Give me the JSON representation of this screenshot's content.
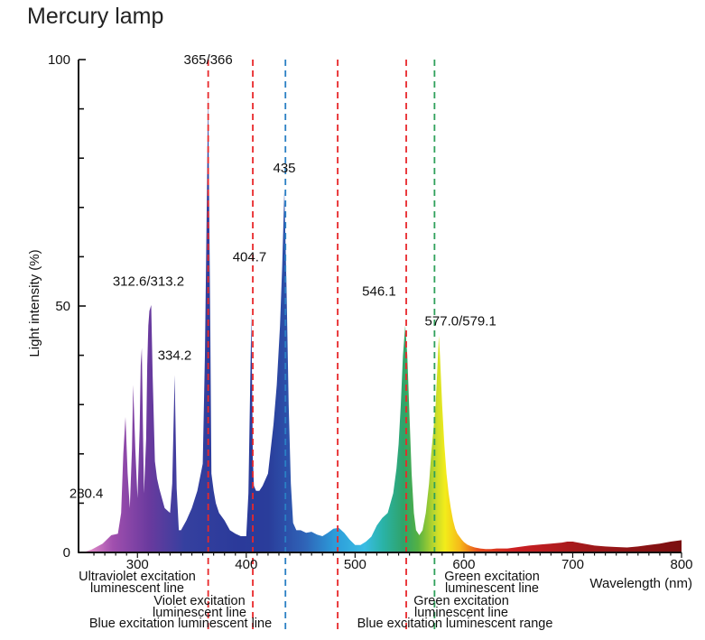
{
  "chart_data": {
    "type": "area",
    "title": "Mercury lamp",
    "xlabel": "Wavelength (nm)",
    "ylabel": "Light intensity (%)",
    "xlim": [
      250,
      800
    ],
    "ylim": [
      0,
      100
    ],
    "x_ticks": [
      300,
      400,
      500,
      600,
      700,
      800
    ],
    "y_ticks": [
      0,
      50,
      100
    ],
    "spectrum": {
      "x": [
        250,
        258,
        268,
        276,
        282,
        285,
        287,
        289,
        291,
        293,
        295,
        296,
        298,
        300,
        302,
        303,
        304,
        305,
        306,
        308,
        309,
        310,
        311,
        312.6,
        314,
        316,
        318,
        320,
        325,
        330,
        332,
        334.2,
        336,
        338,
        340,
        345,
        350,
        355,
        360,
        362,
        365,
        367,
        368,
        370,
        372,
        375,
        380,
        385,
        390,
        395,
        400,
        402,
        404.7,
        406,
        407,
        409,
        412,
        415,
        420,
        425,
        428,
        431,
        433,
        435,
        437,
        439,
        441,
        443,
        446,
        450,
        455,
        460,
        465,
        470,
        475,
        480,
        485,
        490,
        495,
        500,
        505,
        510,
        515,
        520,
        525,
        530,
        535,
        538,
        540,
        542,
        544,
        546.1,
        548,
        550,
        552,
        554,
        556,
        559,
        562,
        565,
        568,
        570,
        572,
        574,
        577,
        578,
        580,
        582,
        584,
        586,
        588,
        590,
        592,
        594,
        596,
        598,
        600,
        603,
        606,
        610,
        615,
        620,
        625,
        630,
        640,
        650,
        660,
        670,
        680,
        690,
        695,
        700,
        710,
        720,
        730,
        740,
        750,
        760,
        770,
        780,
        790,
        800
      ],
      "y": [
        0,
        0.6,
        1.8,
        3.5,
        3.8,
        8,
        20,
        27.5,
        16,
        9,
        21,
        34,
        21,
        11,
        25,
        38,
        41.5,
        26,
        12,
        23,
        38,
        46,
        49,
        50.2,
        36,
        18.5,
        15,
        13,
        9,
        8,
        14,
        36,
        13,
        4.5,
        4.5,
        6.5,
        9,
        12.5,
        18,
        40,
        93,
        45,
        16,
        12.5,
        10,
        8,
        6.5,
        4.5,
        3.8,
        3.3,
        3.3,
        12,
        48.5,
        19,
        13.5,
        12.5,
        12.5,
        13.5,
        16,
        26,
        34,
        46,
        58,
        73.5,
        54,
        30,
        14,
        6,
        4.5,
        4.5,
        4,
        4.2,
        3.6,
        3.3,
        4,
        4.8,
        5,
        4,
        2.6,
        1.5,
        1.5,
        2.2,
        3.2,
        5.5,
        7,
        8,
        12,
        17,
        22,
        30,
        40,
        46,
        40,
        28,
        16,
        8,
        4.5,
        3.5,
        4.5,
        8,
        14,
        20,
        25,
        30,
        44,
        40,
        30,
        22,
        16,
        12,
        9,
        6.5,
        4.8,
        3.8,
        3.2,
        2.6,
        2.1,
        1.6,
        1.3,
        1,
        0.8,
        0.7,
        0.7,
        0.8,
        0.8,
        1.1,
        1.4,
        1.6,
        1.8,
        2,
        2.2,
        2.2,
        1.8,
        1.4,
        1.2,
        1.1,
        1,
        1.2,
        1.5,
        1.8,
        2.2,
        2.5
      ]
    },
    "peak_labels": [
      {
        "text": "280.4",
        "x": 280.4,
        "y": 12
      },
      {
        "text": "312.6/313.2",
        "x": 312.6,
        "y": 55
      },
      {
        "text": "334.2",
        "x": 334.2,
        "y": 40
      },
      {
        "text": "365/366",
        "x": 365,
        "y": 100
      },
      {
        "text": "404.7",
        "x": 404.7,
        "y": 60
      },
      {
        "text": "435",
        "x": 435,
        "y": 78
      },
      {
        "text": "546.1",
        "x": 546.1,
        "y": 53
      },
      {
        "text": "577.0/579.1",
        "x": 577,
        "y": 47
      }
    ],
    "reference_lines": [
      {
        "x": 365,
        "color": "#e8282b",
        "label": [
          "Ultraviolet excitation",
          "luminescent line"
        ]
      },
      {
        "x": 406,
        "color": "#e8282b",
        "label": [
          "Violet excitation",
          "luminescent line"
        ]
      },
      {
        "x": 436,
        "color": "#2a7fc4",
        "label": [
          "Blue excitation luminescent line"
        ]
      },
      {
        "x": 484,
        "color": "#e8282b",
        "label": [
          "Blue excitation luminescent range"
        ]
      },
      {
        "x": 547,
        "color": "#e8282b",
        "label": [
          "Green excitation",
          "luminescent line"
        ]
      },
      {
        "x": 573,
        "color": "#2fa05a",
        "label": [
          "Green excitation",
          "luminescent line"
        ]
      }
    ],
    "grid": false,
    "legend": "none"
  }
}
